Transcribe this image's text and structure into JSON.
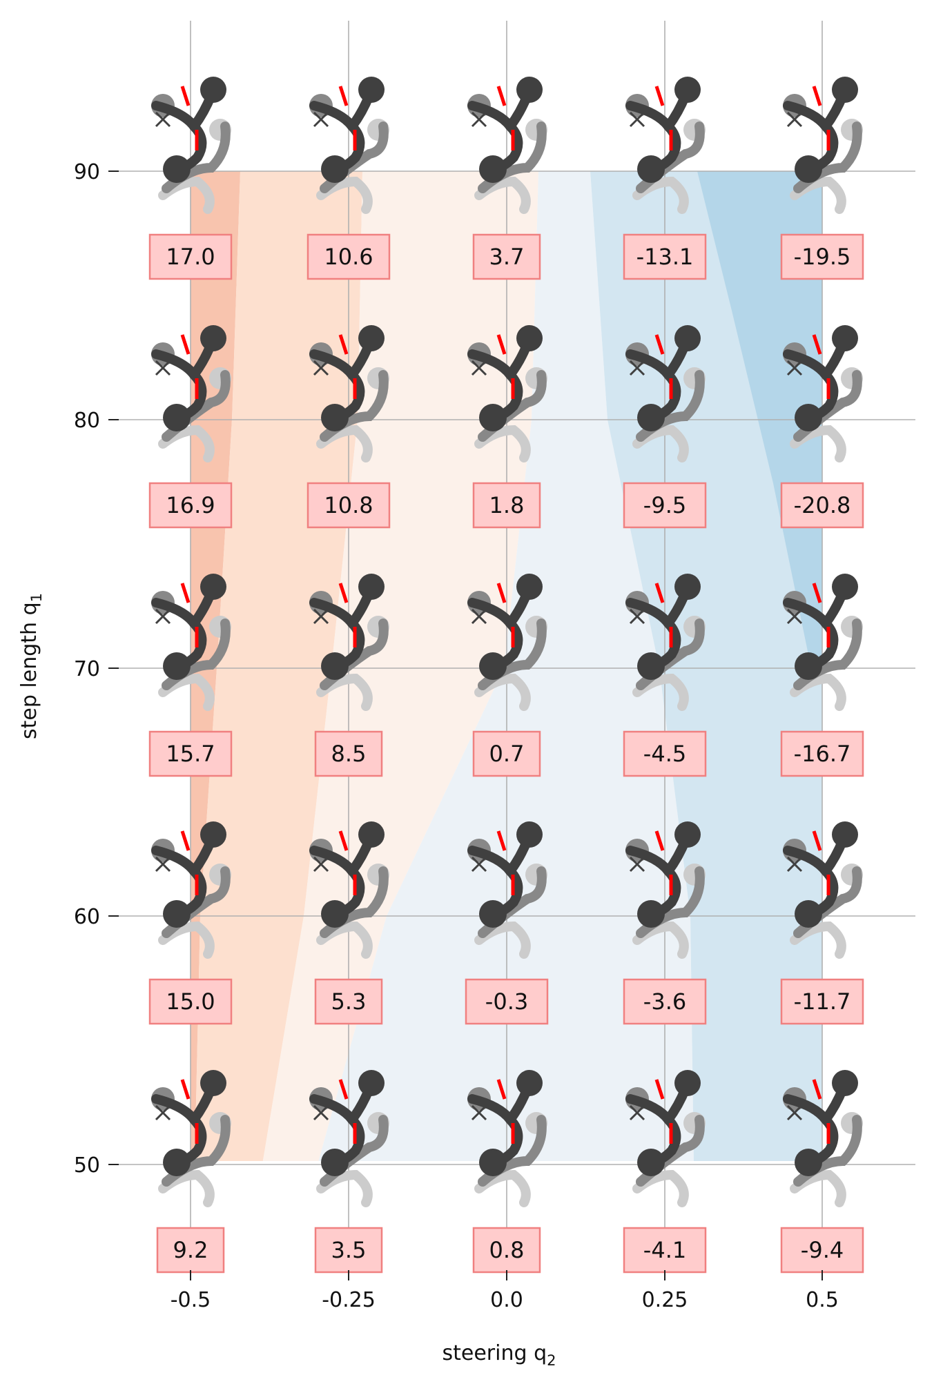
{
  "chart_data": {
    "type": "heatmap",
    "xlabel": "steering q",
    "xlabel_sub": "2",
    "ylabel": "step length q",
    "ylabel_sub": "1",
    "x_ticks": [
      "-0.5",
      "-0.25",
      "0.0",
      "0.25",
      "0.5"
    ],
    "y_ticks": [
      "90",
      "80",
      "70",
      "60",
      "50"
    ],
    "x_values": [
      -0.5,
      -0.25,
      0.0,
      0.25,
      0.5
    ],
    "y_values": [
      90,
      80,
      70,
      60,
      50
    ],
    "xlim": [
      -0.5,
      0.5
    ],
    "ylim": [
      50,
      90
    ],
    "grid": true,
    "cells": [
      {
        "q1": 90,
        "q2": -0.5,
        "value": 17.0,
        "label": "17.0"
      },
      {
        "q1": 90,
        "q2": -0.25,
        "value": 10.6,
        "label": "10.6"
      },
      {
        "q1": 90,
        "q2": 0.0,
        "value": 3.7,
        "label": "3.7"
      },
      {
        "q1": 90,
        "q2": 0.25,
        "value": -13.1,
        "label": "-13.1"
      },
      {
        "q1": 90,
        "q2": 0.5,
        "value": -19.5,
        "label": "-19.5"
      },
      {
        "q1": 80,
        "q2": -0.5,
        "value": 16.9,
        "label": "16.9"
      },
      {
        "q1": 80,
        "q2": -0.25,
        "value": 10.8,
        "label": "10.8"
      },
      {
        "q1": 80,
        "q2": 0.0,
        "value": 1.8,
        "label": "1.8"
      },
      {
        "q1": 80,
        "q2": 0.25,
        "value": -9.5,
        "label": "-9.5"
      },
      {
        "q1": 80,
        "q2": 0.5,
        "value": -20.8,
        "label": "-20.8"
      },
      {
        "q1": 70,
        "q2": -0.5,
        "value": 15.7,
        "label": "15.7"
      },
      {
        "q1": 70,
        "q2": -0.25,
        "value": 8.5,
        "label": "8.5"
      },
      {
        "q1": 70,
        "q2": 0.0,
        "value": 0.7,
        "label": "0.7"
      },
      {
        "q1": 70,
        "q2": 0.25,
        "value": -4.5,
        "label": "-4.5"
      },
      {
        "q1": 70,
        "q2": 0.5,
        "value": -16.7,
        "label": "-16.7"
      },
      {
        "q1": 60,
        "q2": -0.5,
        "value": 15.0,
        "label": "15.0"
      },
      {
        "q1": 60,
        "q2": -0.25,
        "value": 5.3,
        "label": "5.3"
      },
      {
        "q1": 60,
        "q2": 0.0,
        "value": -0.3,
        "label": "-0.3"
      },
      {
        "q1": 60,
        "q2": 0.25,
        "value": -3.6,
        "label": "-3.6"
      },
      {
        "q1": 60,
        "q2": 0.5,
        "value": -11.7,
        "label": "-11.7"
      },
      {
        "q1": 50,
        "q2": -0.5,
        "value": 9.2,
        "label": "9.2"
      },
      {
        "q1": 50,
        "q2": -0.25,
        "value": 3.5,
        "label": "3.5"
      },
      {
        "q1": 50,
        "q2": 0.0,
        "value": 0.8,
        "label": "0.8"
      },
      {
        "q1": 50,
        "q2": 0.25,
        "value": -4.1,
        "label": "-4.1"
      },
      {
        "q1": 50,
        "q2": 0.5,
        "value": -9.4,
        "label": "-9.4"
      }
    ],
    "colors": {
      "positive": "#f4a582",
      "neutral": "#f7f7f7",
      "negative": "#92c5de",
      "label_box_fill": "#ffcccc",
      "label_box_stroke": "#f08080",
      "heading_mark": "#ff0000",
      "body_dark": "#404040",
      "body_mid": "#888888",
      "body_light": "#cccccc",
      "grid": "#b0b0b0"
    }
  }
}
